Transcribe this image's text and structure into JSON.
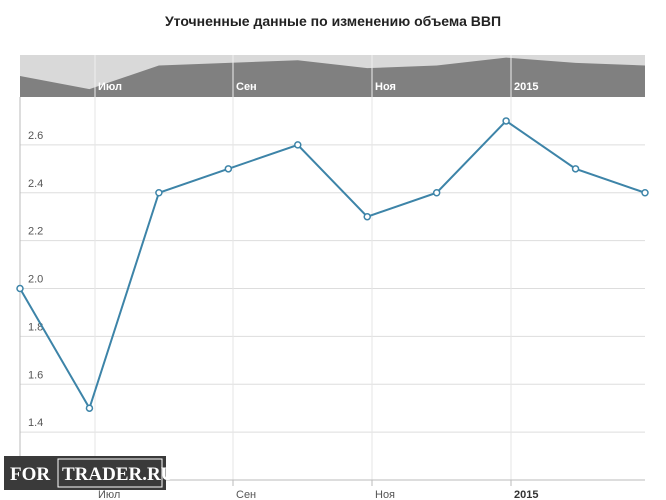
{
  "chart_data": {
    "type": "line",
    "title": "Уточненные данные по изменению объема ВВП",
    "categories": [
      null,
      null,
      null,
      null,
      null,
      null,
      null,
      null,
      null,
      null
    ],
    "series": [
      {
        "color": "#3d84a8",
        "values": [
          2.0,
          1.5,
          2.4,
          2.5,
          2.6,
          2.3,
          2.4,
          2.7,
          2.5,
          2.4
        ]
      }
    ],
    "ylim": [
      1.2,
      2.8
    ],
    "yticks": [
      1.4,
      1.6,
      1.8,
      {
        "value": 2.0,
        "label": "2.0"
      },
      2.2,
      2.4,
      2.6
    ],
    "xtick_labels": [
      "Июл",
      "Сен",
      "Ноя",
      "2015"
    ],
    "grid": true,
    "watermark": [
      "FOR",
      "TRADER.RU"
    ]
  }
}
